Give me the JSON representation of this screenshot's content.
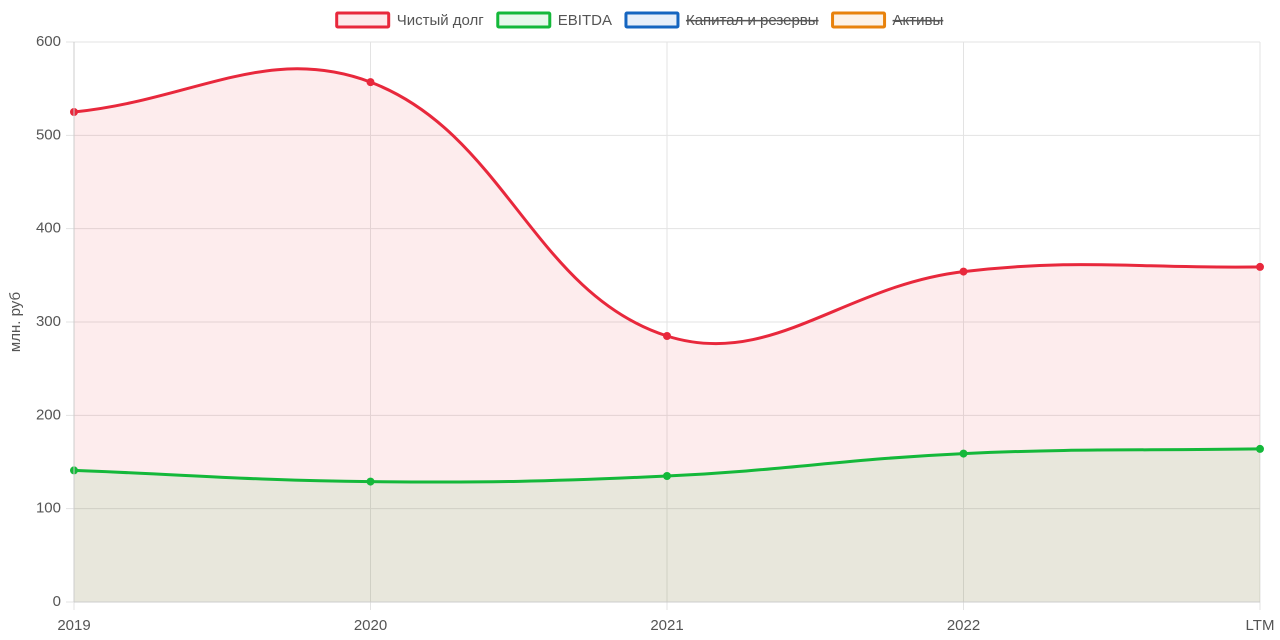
{
  "chart_data": {
    "type": "area",
    "y_label": "млн. руб",
    "categories": [
      "2019",
      "2020",
      "2021",
      "2022",
      "LTM"
    ],
    "series": [
      {
        "name": "Чистый долг",
        "color": "#e8283c",
        "values": [
          525,
          557,
          285,
          354,
          359
        ]
      },
      {
        "name": "EBITDA",
        "color": "#14b83a",
        "values": [
          141,
          129,
          135,
          159,
          164
        ]
      },
      {
        "name": "Капитал и резервы",
        "color": "#1565c0",
        "hidden": true
      },
      {
        "name": "Активы",
        "color": "#e8820c",
        "hidden": true
      }
    ],
    "ylim": [
      0,
      600
    ],
    "yticks": [
      0,
      100,
      200,
      300,
      400,
      500,
      600
    ],
    "grid": true,
    "legend": "top"
  }
}
